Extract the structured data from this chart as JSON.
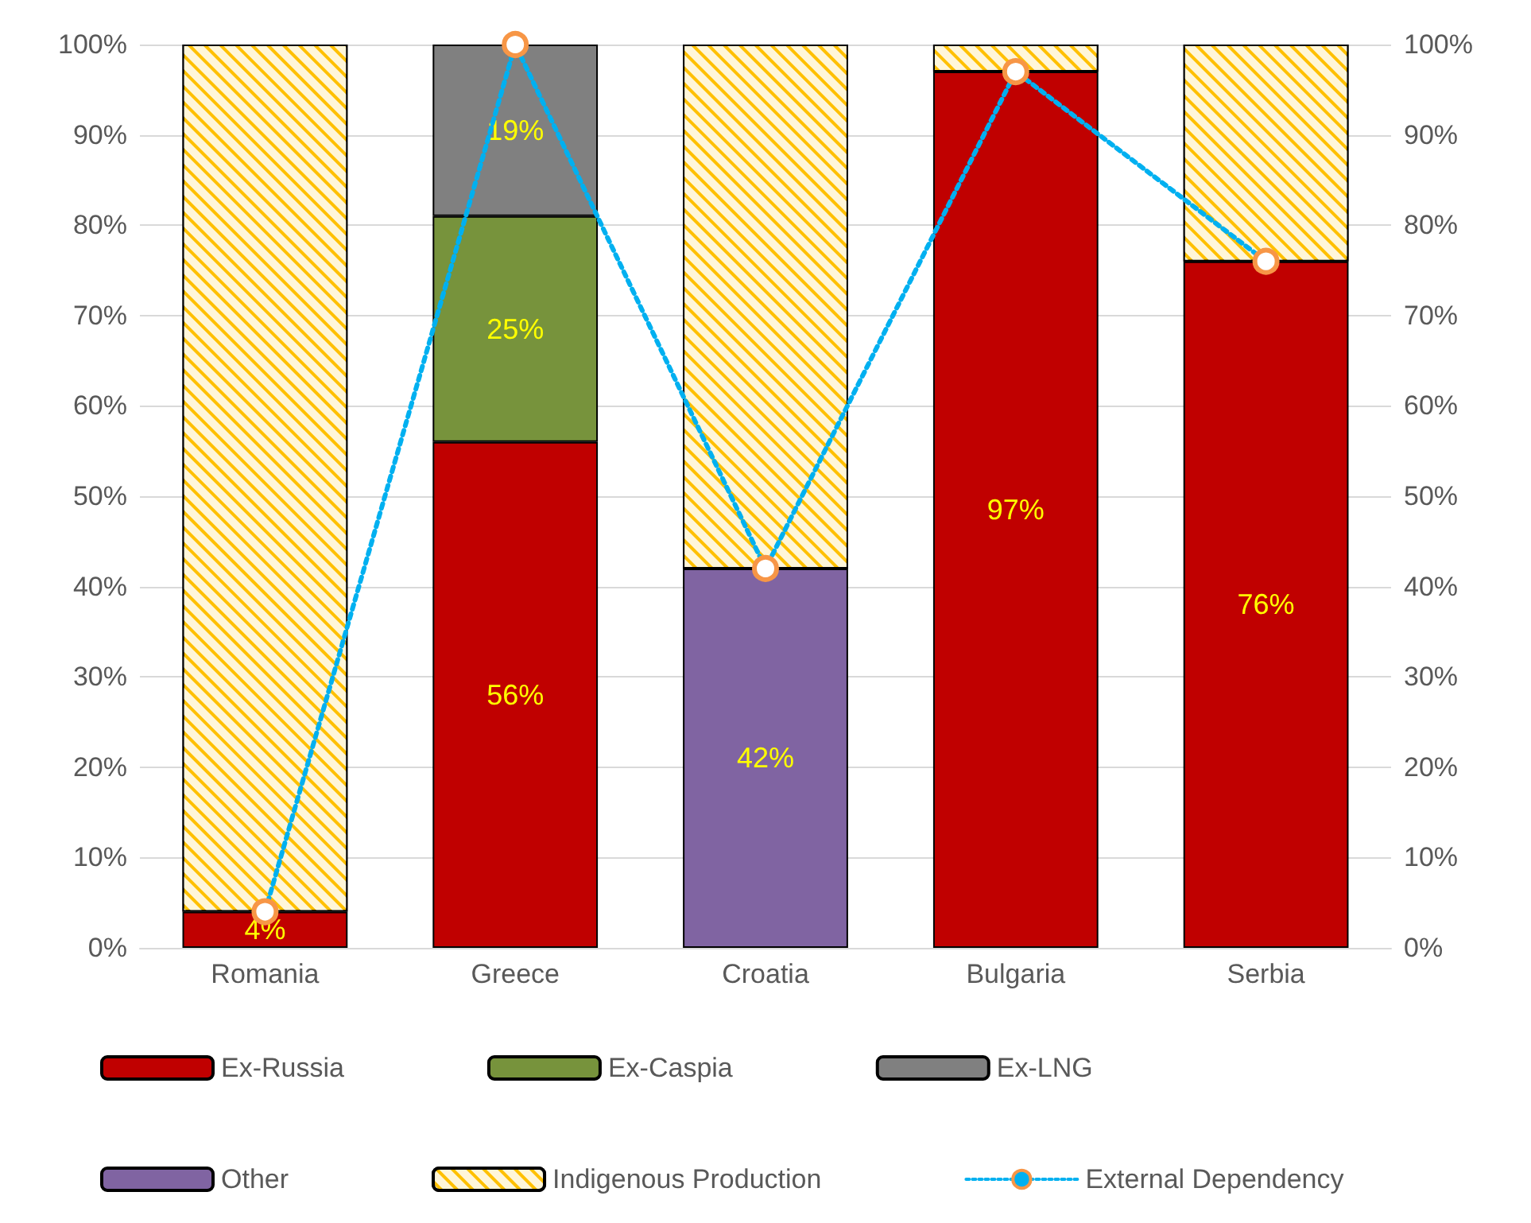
{
  "chart_data": {
    "type": "bar",
    "stacked": true,
    "categories": [
      "Romania",
      "Greece",
      "Croatia",
      "Bulgaria",
      "Serbia"
    ],
    "series": [
      {
        "name": "Ex-Russia",
        "color": "#c00000",
        "values": [
          4,
          56,
          null,
          97,
          76
        ],
        "value_labels": [
          "4%",
          "56%",
          null,
          "97%",
          "76%"
        ]
      },
      {
        "name": "Ex-Caspia",
        "color": "#77933c",
        "values": [
          null,
          25,
          null,
          null,
          null
        ],
        "value_labels": [
          null,
          "25%",
          null,
          null,
          null
        ]
      },
      {
        "name": "Ex-LNG",
        "color": "#808080",
        "values": [
          null,
          19,
          null,
          null,
          null
        ],
        "value_labels": [
          null,
          "19%",
          null,
          null,
          null
        ]
      },
      {
        "name": "Other",
        "color": "#8064a2",
        "values": [
          null,
          null,
          42,
          null,
          null
        ],
        "value_labels": [
          null,
          null,
          "42%",
          null,
          null
        ]
      },
      {
        "name": "Indigenous Production",
        "color": "#ffc000",
        "values": [
          96,
          null,
          58,
          3,
          24
        ]
      },
      {
        "name": "External Dependency",
        "type": "line",
        "axis": "y2",
        "color": "#00b0f0",
        "values": [
          4,
          100,
          42,
          97,
          76
        ],
        "marker": "circle",
        "line_style": "dotted"
      }
    ],
    "ylim": [
      0,
      100
    ],
    "yticks": [
      {
        "value": 0,
        "label": "0%"
      },
      {
        "value": 10,
        "label": "10%"
      },
      {
        "value": 20,
        "label": "20%"
      },
      {
        "value": 30,
        "label": "30%"
      },
      {
        "value": 40,
        "label": "40%"
      },
      {
        "value": 50,
        "label": "50%"
      },
      {
        "value": 60,
        "label": "60%"
      },
      {
        "value": 70,
        "label": "70%"
      },
      {
        "value": 80,
        "label": "80%"
      },
      {
        "value": 90,
        "label": "90%"
      },
      {
        "value": 100,
        "label": "100%"
      }
    ],
    "y2lim": [
      0,
      100
    ],
    "y2ticks": [
      {
        "value": 0,
        "label": "0%"
      },
      {
        "value": 10,
        "label": "10%"
      },
      {
        "value": 20,
        "label": "20%"
      },
      {
        "value": 30,
        "label": "30%"
      },
      {
        "value": 40,
        "label": "40%"
      },
      {
        "value": 50,
        "label": "50%"
      },
      {
        "value": 60,
        "label": "60%"
      },
      {
        "value": 70,
        "label": "70%"
      },
      {
        "value": 80,
        "label": "80%"
      },
      {
        "value": 90,
        "label": "90%"
      },
      {
        "value": 100,
        "label": "100%"
      }
    ],
    "grid": "y",
    "legend": "bottom"
  }
}
